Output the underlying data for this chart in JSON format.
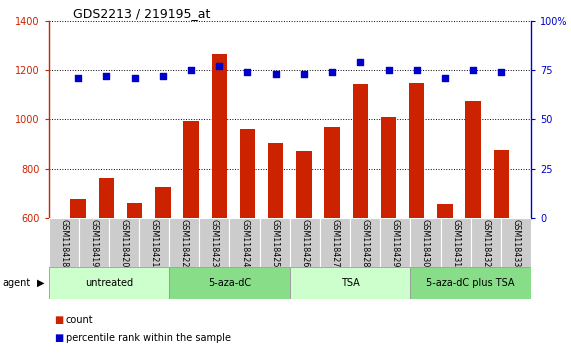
{
  "title": "GDS2213 / 219195_at",
  "categories": [
    "GSM118418",
    "GSM118419",
    "GSM118420",
    "GSM118421",
    "GSM118422",
    "GSM118423",
    "GSM118424",
    "GSM118425",
    "GSM118426",
    "GSM118427",
    "GSM118428",
    "GSM118429",
    "GSM118430",
    "GSM118431",
    "GSM118432",
    "GSM118433"
  ],
  "bar_values": [
    675,
    760,
    660,
    725,
    995,
    1265,
    960,
    905,
    870,
    970,
    1145,
    1010,
    1150,
    655,
    1075,
    875
  ],
  "dot_values": [
    71,
    72,
    71,
    72,
    75,
    77,
    74,
    73,
    73,
    74,
    79,
    75,
    75,
    71,
    75,
    74
  ],
  "bar_color": "#cc2200",
  "dot_color": "#0000cc",
  "ylim_left": [
    600,
    1400
  ],
  "ylim_right": [
    0,
    100
  ],
  "yticks_left": [
    600,
    800,
    1000,
    1200,
    1400
  ],
  "yticks_right": [
    0,
    25,
    50,
    75,
    100
  ],
  "groups": [
    {
      "label": "untreated",
      "start": 0,
      "end": 4
    },
    {
      "label": "5-aza-dC",
      "start": 4,
      "end": 8
    },
    {
      "label": "TSA",
      "start": 8,
      "end": 12
    },
    {
      "label": "5-aza-dC plus TSA",
      "start": 12,
      "end": 16
    }
  ],
  "green_light": "#ccffcc",
  "green_dark": "#88dd88",
  "agent_label": "agent",
  "legend_count_label": "count",
  "legend_pct_label": "percentile rank within the sample",
  "left_axis_color": "#cc2200",
  "right_axis_color": "#0000cc",
  "tick_area_color": "#cccccc",
  "bar_bottom": 600
}
